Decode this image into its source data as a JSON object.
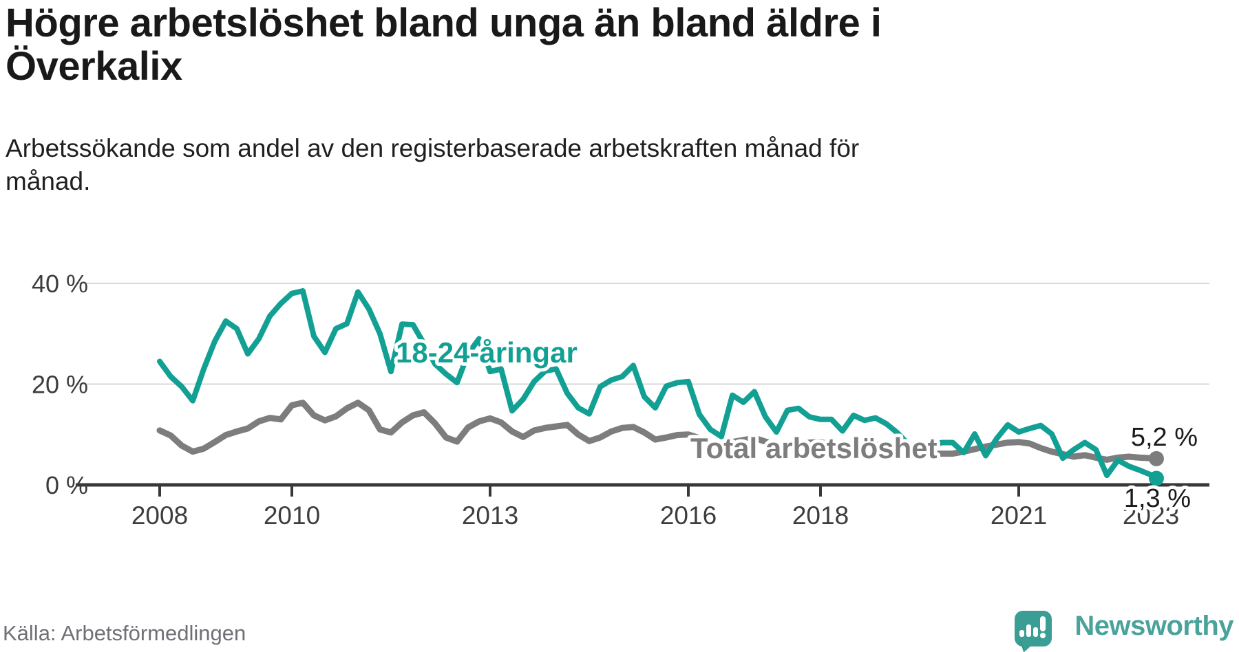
{
  "header": {
    "title_lines": [
      "Högre arbetslöshet bland unga än bland äldre i",
      "Överkalix"
    ],
    "subtitle_lines": [
      "Arbetssökande som andel av den registerbaserade arbetskraften månad för",
      "månad."
    ]
  },
  "chart_data": {
    "type": "line",
    "title": "Högre arbetslöshet bland unga än bland äldre i Överkalix",
    "subtitle": "Arbetssökande som andel av den registerbaserade arbetskraften månad för månad.",
    "unit": "%",
    "grid": "horizontal-only",
    "legend_position": "inline-labels-on-lines",
    "x_axis": {
      "ticks": [
        2008,
        2010,
        2013,
        2016,
        2018,
        2021,
        2023
      ],
      "tick_labels": [
        "2008",
        "2010",
        "2013",
        "2016",
        "2018",
        "2021",
        "2023"
      ],
      "range": [
        2007.7,
        2023.9
      ]
    },
    "y_axis": {
      "ticks": [
        0,
        20,
        40
      ],
      "tick_labels": [
        "0 %",
        "20 %",
        "40 %"
      ],
      "gridlines": [
        20,
        40
      ],
      "range": [
        0,
        42
      ]
    },
    "x_sampling": {
      "x_start": 2008.0,
      "x_step": 0.166667,
      "x_last": 2023.083
    },
    "series": [
      {
        "name": "Total arbetslöshet",
        "color": "#7d7d7d",
        "end_value": 5.2,
        "end_label": "5,2 %",
        "values": [
          10.8,
          9.8,
          7.8,
          6.6,
          7.2,
          8.5,
          9.9,
          10.6,
          11.2,
          12.6,
          13.3,
          13.0,
          15.8,
          16.3,
          13.8,
          12.8,
          13.6,
          15.2,
          16.3,
          14.8,
          11.0,
          10.4,
          12.4,
          13.8,
          14.4,
          12.2,
          9.4,
          8.6,
          11.4,
          12.6,
          13.2,
          12.4,
          10.6,
          9.5,
          10.8,
          11.3,
          11.6,
          11.9,
          10.0,
          8.7,
          9.4,
          10.6,
          11.3,
          11.5,
          10.4,
          9.0,
          9.4,
          9.9,
          10.0,
          9.3,
          8.3,
          8.0,
          8.5,
          8.9,
          9.3,
          8.6,
          7.8,
          7.5,
          8.0,
          8.4,
          8.5,
          7.9,
          7.2,
          7.0,
          7.5,
          7.9,
          8.0,
          7.2,
          6.6,
          6.3,
          6.2,
          6.2,
          6.2,
          6.6,
          7.1,
          7.6,
          8.0,
          8.4,
          8.5,
          8.2,
          7.3,
          6.6,
          6.1,
          5.6,
          5.9,
          5.4,
          5.0,
          5.4,
          5.6,
          5.4,
          5.3,
          5.2
        ]
      },
      {
        "name": "18-24-åringar",
        "color": "#13a094",
        "end_value": 1.3,
        "end_label": "1,3 %",
        "values": [
          24.5,
          21.5,
          19.5,
          16.7,
          23.0,
          28.5,
          32.5,
          31.0,
          26.0,
          29.0,
          33.5,
          36.0,
          38.0,
          38.5,
          29.5,
          26.3,
          31.0,
          32.0,
          38.3,
          34.9,
          30.0,
          22.5,
          31.9,
          31.8,
          28.0,
          24.0,
          22.0,
          20.3,
          26.0,
          29.0,
          22.5,
          23.0,
          14.7,
          17.0,
          20.5,
          22.6,
          23.0,
          18.2,
          15.3,
          14.1,
          19.5,
          20.8,
          21.5,
          23.7,
          17.5,
          15.3,
          19.6,
          20.3,
          20.5,
          14.0,
          11.0,
          9.6,
          17.8,
          16.4,
          18.5,
          13.5,
          10.5,
          14.8,
          15.2,
          13.5,
          13.0,
          13.0,
          10.7,
          13.8,
          12.8,
          13.3,
          12.1,
          10.3,
          8.0,
          6.8,
          7.5,
          8.4,
          8.4,
          6.4,
          10.1,
          5.8,
          9.2,
          11.9,
          10.5,
          11.2,
          11.8,
          10.1,
          5.3,
          7.0,
          8.4,
          7.0,
          1.9,
          4.9,
          3.7,
          2.9,
          2.0,
          1.3
        ]
      }
    ]
  },
  "footer": {
    "source": "Källa: Arbetsförmedlingen",
    "brand": "Newsworthy"
  },
  "colors": {
    "accent_teal": "#13a094",
    "line_gray": "#7d7d7d",
    "axis": "#383838",
    "grid": "#d8d8d8",
    "text": "#1a1a1a",
    "source_text": "#6f6f76",
    "logo_bubble": "#3b9e95",
    "logo_text": "#4aa39b"
  }
}
